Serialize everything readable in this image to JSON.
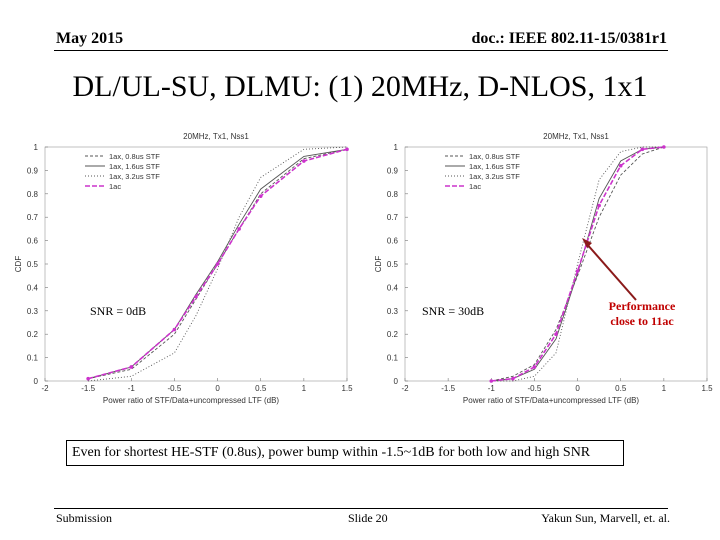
{
  "header": {
    "date": "May 2015",
    "doc": "doc.: IEEE 802.11-15/0381r1"
  },
  "title": "DL/UL-SU, DLMU: (1) 20MHz, D-NLOS, 1x1",
  "colors": {
    "curve_grey": "#555555",
    "curve_11ac": "#cc33cc",
    "callout_red": "#c00000"
  },
  "chart_data": [
    {
      "type": "line",
      "title": "20MHz, Tx1, Nss1",
      "xlabel": "Power ratio of STF/Data+uncompressed LTF (dB)",
      "ylabel": "CDF",
      "xlim": [
        -2,
        1.5
      ],
      "ylim": [
        0,
        1
      ],
      "xticks": [
        "-2",
        "-1.5",
        "-1",
        "-0.5",
        "0",
        "0.5",
        "1",
        "1.5"
      ],
      "yticks": [
        "0",
        "0.1",
        "0.2",
        "0.3",
        "0.4",
        "0.5",
        "0.6",
        "0.7",
        "0.8",
        "0.9",
        "1"
      ],
      "legend": "top-left",
      "annotation": "SNR = 0dB",
      "series": [
        {
          "name": "1ax, 0.8us STF",
          "x": [
            -1.5,
            -1.0,
            -0.5,
            -0.25,
            0,
            0.25,
            0.5,
            1.0,
            1.5
          ],
          "y": [
            0.01,
            0.05,
            0.2,
            0.35,
            0.5,
            0.65,
            0.8,
            0.95,
            0.99
          ]
        },
        {
          "name": "1ax, 1.6us STF",
          "x": [
            -1.5,
            -1.0,
            -0.5,
            -0.25,
            0,
            0.25,
            0.5,
            1.0,
            1.5
          ],
          "y": [
            0.01,
            0.06,
            0.22,
            0.37,
            0.51,
            0.67,
            0.82,
            0.96,
            0.99
          ]
        },
        {
          "name": "1ax, 3.2us STF",
          "x": [
            -1.5,
            -1.0,
            -0.5,
            -0.25,
            0,
            0.25,
            0.5,
            1.0,
            1.5
          ],
          "y": [
            0.0,
            0.02,
            0.12,
            0.28,
            0.48,
            0.7,
            0.87,
            0.99,
            1.0
          ]
        },
        {
          "name": "1ac",
          "x": [
            -1.5,
            -1.0,
            -0.5,
            -0.25,
            0,
            0.25,
            0.5,
            1.0,
            1.5
          ],
          "y": [
            0.01,
            0.06,
            0.22,
            0.36,
            0.5,
            0.65,
            0.79,
            0.94,
            0.99
          ]
        }
      ]
    },
    {
      "type": "line",
      "title": "20MHz, Tx1, Nss1",
      "xlabel": "Power ratio of STF/Data+uncompressed LTF (dB)",
      "ylabel": "CDF",
      "xlim": [
        -2,
        1.5
      ],
      "ylim": [
        0,
        1
      ],
      "xticks": [
        "-2",
        "-1.5",
        "-1",
        "-0.5",
        "0",
        "0.5",
        "1",
        "1.5"
      ],
      "yticks": [
        "0",
        "0.1",
        "0.2",
        "0.3",
        "0.4",
        "0.5",
        "0.6",
        "0.7",
        "0.8",
        "0.9",
        "1"
      ],
      "legend": "top-left",
      "annotation": "SNR = 30dB",
      "series": [
        {
          "name": "1ax, 0.8us STF",
          "x": [
            -1.0,
            -0.75,
            -0.5,
            -0.25,
            0,
            0.25,
            0.5,
            0.75,
            1.0
          ],
          "y": [
            0.0,
            0.02,
            0.07,
            0.22,
            0.45,
            0.7,
            0.88,
            0.97,
            1.0
          ]
        },
        {
          "name": "1ax, 1.6us STF",
          "x": [
            -1.0,
            -0.75,
            -0.5,
            -0.25,
            0,
            0.25,
            0.5,
            0.75,
            1.0
          ],
          "y": [
            0.0,
            0.01,
            0.05,
            0.18,
            0.46,
            0.78,
            0.94,
            0.99,
            1.0
          ]
        },
        {
          "name": "1ax, 3.2us STF",
          "x": [
            -1.0,
            -0.75,
            -0.5,
            -0.25,
            0,
            0.25,
            0.5,
            0.75,
            1.0
          ],
          "y": [
            0.0,
            0.0,
            0.02,
            0.12,
            0.5,
            0.86,
            0.98,
            1.0,
            1.0
          ]
        },
        {
          "name": "1ac",
          "x": [
            -1.0,
            -0.75,
            -0.5,
            -0.25,
            0,
            0.25,
            0.5,
            0.75,
            1.0
          ],
          "y": [
            0.0,
            0.01,
            0.06,
            0.2,
            0.47,
            0.75,
            0.92,
            0.99,
            1.0
          ]
        }
      ]
    }
  ],
  "callout": "Performance close to 11ac",
  "note": "Even for shortest HE-STF (0.8us), power bump within -1.5~1dB for both low and high SNR",
  "footer": {
    "left": "Submission",
    "center": "Slide 20",
    "right": "Yakun Sun,  Marvell, et. al."
  }
}
